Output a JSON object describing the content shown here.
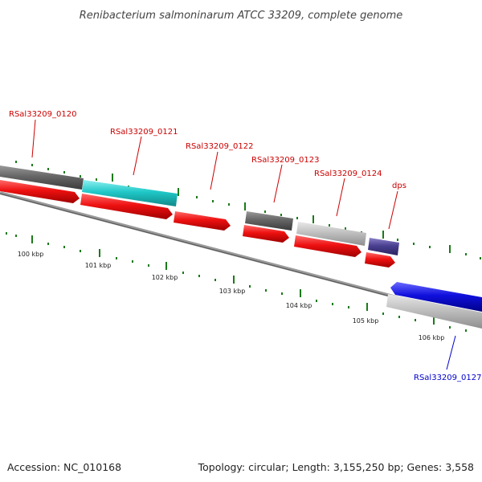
{
  "header": {
    "title": "Renibacterium salmoninarum ATCC 33209, complete genome"
  },
  "footer": {
    "accession": "Accession: NC_010168",
    "summary": "Topology: circular; Length: 3,155,250 bp; Genes: 3,558"
  },
  "colors": {
    "gene_red": "#ee1111",
    "gene_cyan": "#20c8c8",
    "gene_dark_gray": "#666666",
    "gene_light_gray": "#c0c0c0",
    "gene_slate": "#4a4090",
    "gene_blue": "#1010dd",
    "label_red": "#cc0000",
    "label_blue": "#0000cc",
    "tick_green": "#1a7a1a",
    "backbone_gray": "#888888"
  },
  "gene_labels": [
    {
      "name": "RSal33209_0120"
    },
    {
      "name": "RSal33209_0121"
    },
    {
      "name": "RSal33209_0122"
    },
    {
      "name": "RSal33209_0123"
    },
    {
      "name": "RSal33209_0124"
    },
    {
      "name": "dps"
    },
    {
      "name": "RSal33209_0127"
    }
  ],
  "scale_labels": [
    "100 kbp",
    "101 kbp",
    "102 kbp",
    "103 kbp",
    "104 kbp",
    "105 kbp",
    "106 kbp"
  ]
}
